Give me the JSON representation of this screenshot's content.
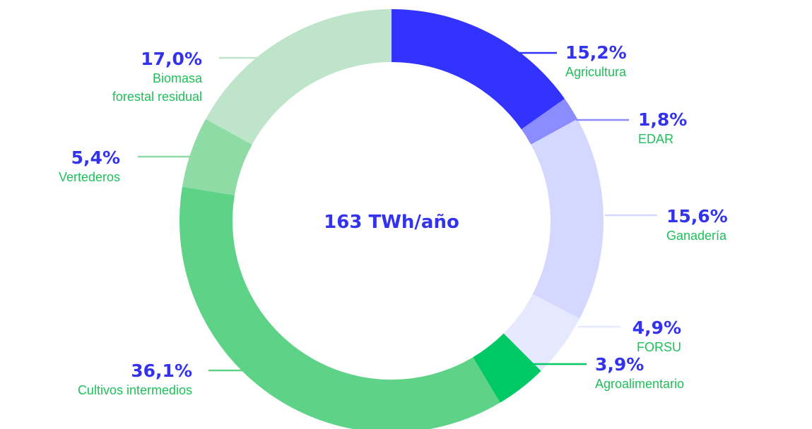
{
  "chart_data": {
    "type": "pie",
    "center_label": "163 TWh/año",
    "slices": [
      {
        "percent_label": "15,2%",
        "label": [
          "Agricultura"
        ],
        "value": 15.2,
        "color": "#3333ff"
      },
      {
        "percent_label": "1,8%",
        "label": [
          "EDAR"
        ],
        "value": 1.8,
        "color": "#8a8cff"
      },
      {
        "percent_label": "15,6%",
        "label": [
          "Ganadería"
        ],
        "value": 15.6,
        "color": "#d4d7ff"
      },
      {
        "percent_label": "4,9%",
        "label": [
          "FORSU"
        ],
        "value": 4.9,
        "color": "#e6e8ff"
      },
      {
        "percent_label": "3,9%",
        "label": [
          "Agroalimentario"
        ],
        "value": 3.9,
        "color": "#00c864"
      },
      {
        "percent_label": "36,1%",
        "label": [
          "Cultivos intermedios"
        ],
        "value": 36.1,
        "color": "#5ed387"
      },
      {
        "percent_label": "5,4%",
        "label": [
          "Vertederos"
        ],
        "value": 5.4,
        "color": "#8edba5"
      },
      {
        "percent_label": "17,0%",
        "label": [
          "Biomasa",
          "forestal residual"
        ],
        "value": 17.0,
        "color": "#bee5c9"
      }
    ]
  }
}
